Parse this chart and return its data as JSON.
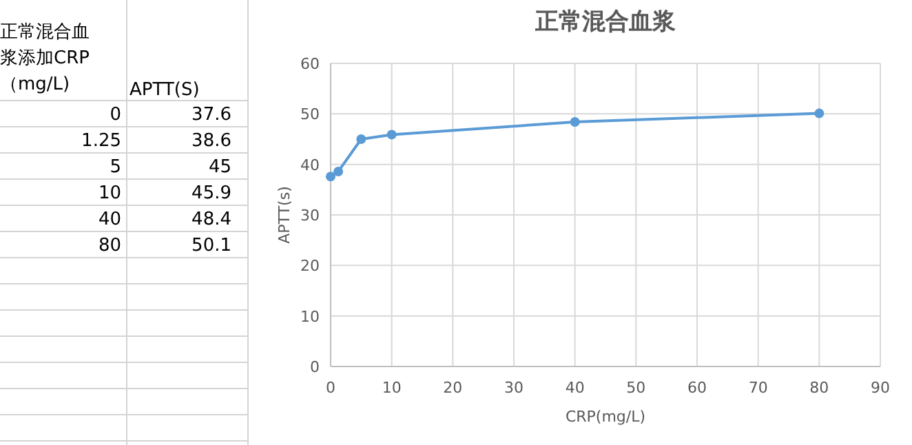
{
  "chart_data": {
    "type": "line",
    "title": "正常混合血浆",
    "xlabel": "CRP(mg/L)",
    "ylabel": "APTT(s)",
    "x": [
      0,
      1.25,
      5,
      10,
      40,
      80
    ],
    "values": [
      37.6,
      38.6,
      45,
      45.9,
      48.4,
      50.1
    ],
    "color": "#5b9bd5",
    "xlim": [
      0,
      90
    ],
    "xticks": [
      0,
      10,
      20,
      30,
      40,
      50,
      60,
      70,
      80,
      90
    ],
    "ylim": [
      0,
      60
    ],
    "yticks": [
      0,
      10,
      20,
      30,
      40,
      50,
      60
    ],
    "grid": true,
    "marker": "circle",
    "annotations": [
      "正常混合血浆添加CRP（mg/L)",
      "APTT(S)",
      "0",
      "37.6",
      "1.25",
      "38.6",
      "5",
      "45",
      "10",
      "45.9",
      "40",
      "48.4",
      "80",
      "50.1"
    ]
  }
}
